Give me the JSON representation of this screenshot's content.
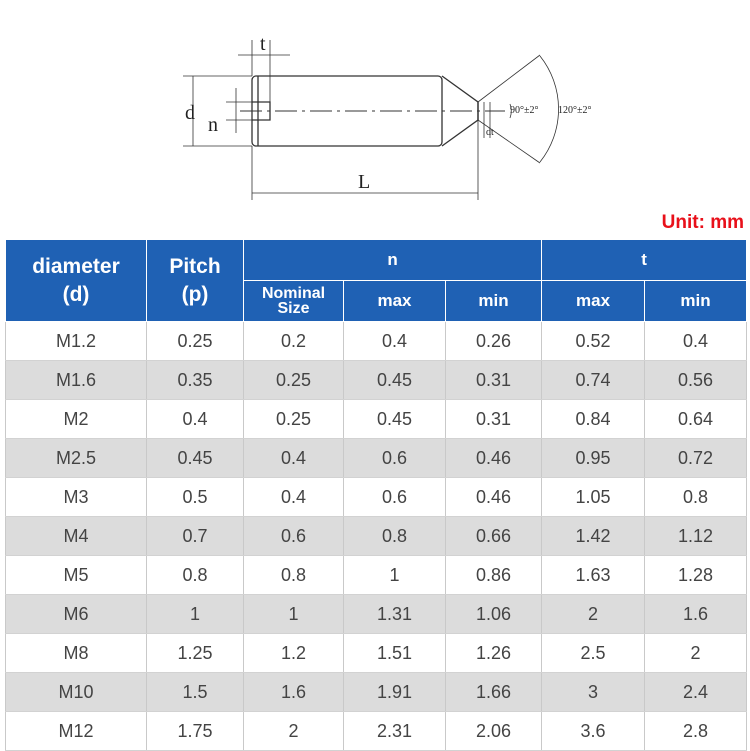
{
  "diagram": {
    "labels": {
      "t": "t",
      "d": "d",
      "n": "n",
      "L": "L",
      "dt": "dt",
      "angle1": "90°±2°",
      "angle2": "120°±2°"
    }
  },
  "unit": "Unit: mm",
  "table": {
    "headers": {
      "diameter": "diameter",
      "diameter_sym": "(d)",
      "pitch": "Pitch",
      "pitch_sym": "(p)",
      "n": "n",
      "t": "t",
      "nominal_line1": "Nominal",
      "nominal_line2": "Size",
      "max": "max",
      "min": "min"
    },
    "rows": [
      [
        "M1.2",
        "0.25",
        "0.2",
        "0.4",
        "0.26",
        "0.52",
        "0.4"
      ],
      [
        "M1.6",
        "0.35",
        "0.25",
        "0.45",
        "0.31",
        "0.74",
        "0.56"
      ],
      [
        "M2",
        "0.4",
        "0.25",
        "0.45",
        "0.31",
        "0.84",
        "0.64"
      ],
      [
        "M2.5",
        "0.45",
        "0.4",
        "0.6",
        "0.46",
        "0.95",
        "0.72"
      ],
      [
        "M3",
        "0.5",
        "0.4",
        "0.6",
        "0.46",
        "1.05",
        "0.8"
      ],
      [
        "M4",
        "0.7",
        "0.6",
        "0.8",
        "0.66",
        "1.42",
        "1.12"
      ],
      [
        "M5",
        "0.8",
        "0.8",
        "1",
        "0.86",
        "1.63",
        "1.28"
      ],
      [
        "M6",
        "1",
        "1",
        "1.31",
        "1.06",
        "2",
        "1.6"
      ],
      [
        "M8",
        "1.25",
        "1.2",
        "1.51",
        "1.26",
        "2.5",
        "2"
      ],
      [
        "M10",
        "1.5",
        "1.6",
        "1.91",
        "1.66",
        "3",
        "2.4"
      ],
      [
        "M12",
        "1.75",
        "2",
        "2.31",
        "2.06",
        "3.6",
        "2.8"
      ]
    ]
  },
  "colors": {
    "header_bg": "#1f61b4",
    "unit_red": "#e8101a",
    "row_alt": "#dcdcdc"
  }
}
